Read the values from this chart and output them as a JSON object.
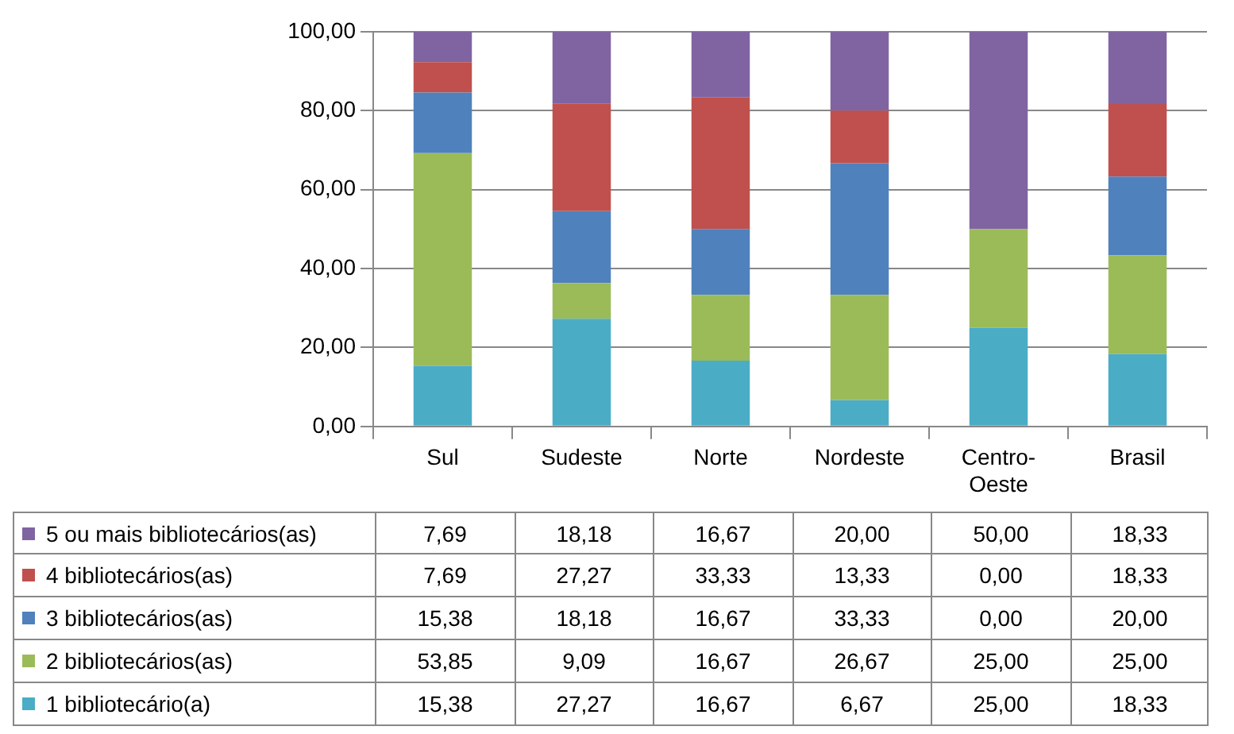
{
  "chart_data": {
    "type": "bar",
    "stacked": true,
    "categories": [
      "Sul",
      "Sudeste",
      "Norte",
      "Nordeste",
      "Centro-Oeste",
      "Brasil"
    ],
    "series": [
      {
        "name": "1 bibliotecário(a)",
        "color": "#4bacc6",
        "values": [
          15.38,
          27.27,
          16.67,
          6.67,
          25.0,
          18.33
        ],
        "value_labels": [
          "15,38",
          "27,27",
          "16,67",
          "6,67",
          "25,00",
          "18,33"
        ]
      },
      {
        "name": "2 bibliotecários(as)",
        "color": "#9bbb59",
        "values": [
          53.85,
          9.09,
          16.67,
          26.67,
          25.0,
          25.0
        ],
        "value_labels": [
          "53,85",
          "9,09",
          "16,67",
          "26,67",
          "25,00",
          "25,00"
        ]
      },
      {
        "name": "3 bibliotecários(as)",
        "color": "#4f81bd",
        "values": [
          15.38,
          18.18,
          16.67,
          33.33,
          0.0,
          20.0
        ],
        "value_labels": [
          "15,38",
          "18,18",
          "16,67",
          "33,33",
          "0,00",
          "20,00"
        ]
      },
      {
        "name": "4 bibliotecários(as)",
        "color": "#c0504d",
        "values": [
          7.69,
          27.27,
          33.33,
          13.33,
          0.0,
          18.33
        ],
        "value_labels": [
          "7,69",
          "27,27",
          "33,33",
          "13,33",
          "0,00",
          "18,33"
        ]
      },
      {
        "name": "5 ou mais bibliotecários(as)",
        "color": "#8064a2",
        "values": [
          7.69,
          18.18,
          16.67,
          20.0,
          50.0,
          18.33
        ],
        "value_labels": [
          "7,69",
          "18,18",
          "16,67",
          "20,00",
          "50,00",
          "18,33"
        ]
      }
    ],
    "ylim": [
      0,
      100
    ],
    "yticks": [
      {
        "value": 0,
        "label": "0,00"
      },
      {
        "value": 20,
        "label": "20,00"
      },
      {
        "value": 40,
        "label": "40,00"
      },
      {
        "value": 60,
        "label": "60,00"
      },
      {
        "value": 80,
        "label": "80,00"
      },
      {
        "value": 100,
        "label": "100,00"
      }
    ],
    "grid": "y",
    "legend": "bottom left"
  }
}
